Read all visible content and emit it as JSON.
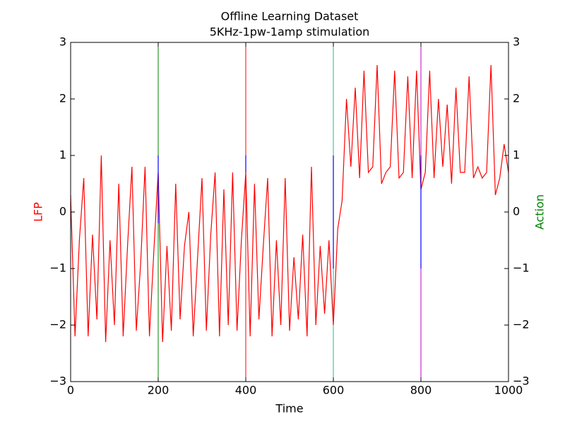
{
  "chart_data": {
    "type": "line",
    "title": "Offline Learning Dataset",
    "subtitle": "5KHz-1pw-1amp stimulation",
    "xlabel": "Time",
    "ylabel": "LFP",
    "y2label": "Action",
    "ylabel_color": "#ff0000",
    "y2label_color": "#008000",
    "xlim": [
      0,
      1000
    ],
    "xticks": [
      0,
      200,
      400,
      600,
      800,
      1000
    ],
    "ylim": [
      -3,
      3
    ],
    "yticks": [
      {
        "value": -3,
        "label": "−3"
      },
      {
        "value": -2,
        "label": "−2"
      },
      {
        "value": -1,
        "label": "−1"
      },
      0,
      1,
      2,
      3
    ],
    "y2lim": [
      -3,
      3
    ],
    "y2ticks": [
      {
        "value": -3,
        "label": "−3"
      },
      {
        "value": -2,
        "label": "−2"
      },
      {
        "value": -1,
        "label": "−1"
      },
      0,
      1,
      2,
      3
    ],
    "x": [
      0,
      10,
      20,
      30,
      40,
      50,
      60,
      70,
      80,
      90,
      100,
      110,
      120,
      130,
      140,
      150,
      160,
      170,
      180,
      190,
      200,
      210,
      220,
      230,
      240,
      250,
      260,
      270,
      280,
      290,
      300,
      310,
      320,
      330,
      340,
      350,
      360,
      370,
      380,
      390,
      400,
      410,
      420,
      430,
      440,
      450,
      460,
      470,
      480,
      490,
      500,
      510,
      520,
      530,
      540,
      550,
      560,
      570,
      580,
      590,
      600,
      610,
      620,
      630,
      640,
      650,
      660,
      670,
      680,
      690,
      700,
      710,
      720,
      730,
      740,
      750,
      760,
      770,
      780,
      790,
      800,
      810,
      820,
      830,
      840,
      850,
      860,
      870,
      880,
      890,
      900,
      910,
      920,
      930,
      940,
      950,
      960,
      970,
      980,
      990,
      1000
    ],
    "series": [
      {
        "color": "#ff0000",
        "values": [
          0.3,
          -2.2,
          -0.5,
          0.6,
          -2.2,
          -0.4,
          -1.9,
          1.0,
          -2.3,
          -0.5,
          -2.0,
          0.5,
          -2.2,
          -0.6,
          0.8,
          -2.1,
          -0.9,
          0.8,
          -2.2,
          -0.7,
          0.7,
          -2.3,
          -0.6,
          -2.1,
          0.5,
          -1.9,
          -0.6,
          0.0,
          -2.2,
          -0.8,
          0.6,
          -2.1,
          -0.4,
          0.7,
          -2.2,
          0.4,
          -2.0,
          0.7,
          -2.1,
          -0.5,
          0.7,
          -2.2,
          0.5,
          -1.9,
          -0.6,
          0.6,
          -2.2,
          -0.5,
          -2.0,
          0.6,
          -2.1,
          -0.8,
          -1.9,
          -0.4,
          -2.2,
          0.8,
          -2.0,
          -0.6,
          -1.8,
          -0.5,
          -2.0,
          -0.3,
          0.2,
          2.0,
          0.8,
          2.2,
          0.6,
          2.5,
          0.7,
          0.8,
          2.6,
          0.5,
          0.7,
          0.8,
          2.5,
          0.6,
          0.7,
          2.4,
          0.6,
          2.5,
          0.4,
          0.7,
          2.5,
          0.6,
          2.0,
          0.8,
          1.9,
          0.5,
          2.2,
          0.7,
          0.7,
          2.4,
          0.6,
          0.8,
          0.6,
          0.7,
          2.6,
          0.3,
          0.6,
          1.2,
          0.7
        ]
      }
    ],
    "action_segments": [
      {
        "x": 200,
        "values": [
          1,
          -0.2
        ],
        "color": "#0000ff"
      },
      {
        "x": 400,
        "values": [
          1,
          0.7
        ],
        "color": "#0000ff"
      },
      {
        "x": 600,
        "values": [
          1,
          -1
        ],
        "color": "#0000ff"
      },
      {
        "x": 800,
        "values": [
          1,
          -1
        ],
        "color": "#0000ff"
      }
    ],
    "vlines": [
      {
        "x": 200,
        "color": "#008000"
      },
      {
        "x": 400,
        "color": "#ff0000"
      },
      {
        "x": 600,
        "color": "#1abc9c"
      },
      {
        "x": 800,
        "color": "#bf00bf"
      }
    ]
  }
}
